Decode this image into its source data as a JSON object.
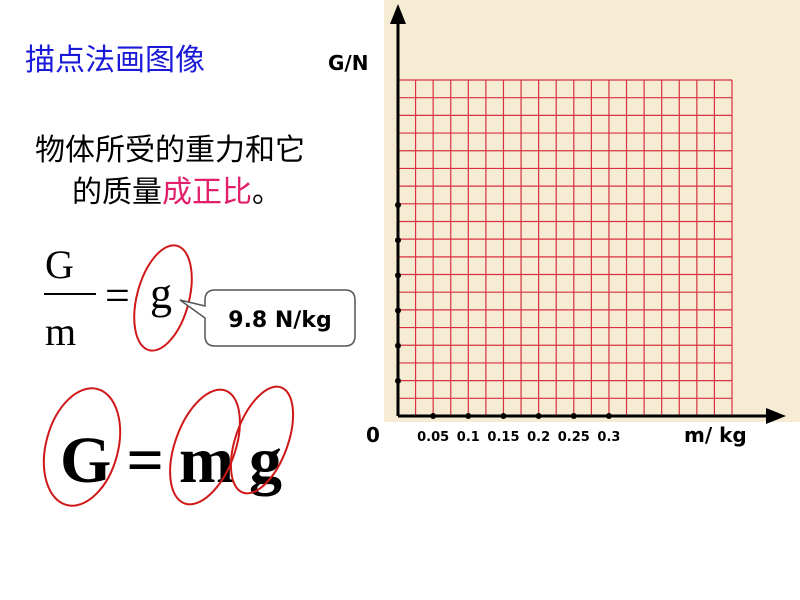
{
  "title": "描点法画图像",
  "statement": {
    "line1": "物体所受的重力和它",
    "line2_start": "的质量",
    "highlight": "成正比",
    "line2_end": "。"
  },
  "formula": {
    "numerator": "G",
    "denominator": "m",
    "equals": "=",
    "rhs": "g"
  },
  "callout": "9.8 N/kg",
  "equation": "G=mg",
  "graph": {
    "y_label": "G/N",
    "x_label": "m/ kg",
    "origin": "0",
    "x_ticks": [
      "0.05",
      "0.1",
      "0.15",
      "0.2",
      "0.25",
      "0.3"
    ]
  }
}
